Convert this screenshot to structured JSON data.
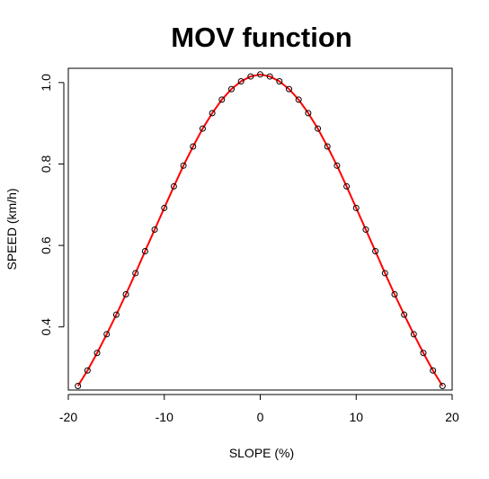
{
  "chart_data": {
    "type": "line",
    "title": "MOV function",
    "xlabel": "SLOPE (%)",
    "ylabel": "SPEED (km/h)",
    "xlim": [
      -20,
      20
    ],
    "ylim": [
      0.245,
      1.035
    ],
    "x_ticks": [
      -20,
      -10,
      0,
      10,
      20
    ],
    "x_tick_labels": [
      "-20",
      "-10",
      "0",
      "10",
      "20"
    ],
    "y_ticks": [
      0.4,
      0.6,
      0.8,
      1.0
    ],
    "y_tick_labels": [
      "0.4",
      "0.6",
      "0.8",
      "1.0"
    ],
    "grid": false,
    "colors": {
      "line": "#ff0000",
      "points": "#000000"
    },
    "series": [
      {
        "style": "points",
        "x": [
          -19,
          -18,
          -17,
          -16,
          -15,
          -14,
          -13,
          -12,
          -11,
          -10,
          -9,
          -8,
          -7,
          -6,
          -5,
          -4,
          -3,
          -2,
          -1,
          0,
          1,
          2,
          3,
          4,
          5,
          6,
          7,
          8,
          9,
          10,
          11,
          12,
          13,
          14,
          15,
          16,
          17,
          18,
          19
        ],
        "values": [
          0.255,
          0.293,
          0.336,
          0.382,
          0.43,
          0.48,
          0.532,
          0.586,
          0.639,
          0.692,
          0.745,
          0.796,
          0.843,
          0.887,
          0.925,
          0.958,
          0.984,
          1.003,
          1.015,
          1.02,
          1.015,
          1.003,
          0.984,
          0.958,
          0.925,
          0.887,
          0.843,
          0.796,
          0.745,
          0.692,
          0.639,
          0.586,
          0.532,
          0.48,
          0.43,
          0.382,
          0.336,
          0.293,
          0.255
        ]
      },
      {
        "style": "line",
        "x": [
          -19,
          -18,
          -17,
          -16,
          -15,
          -14,
          -13,
          -12,
          -11,
          -10,
          -9,
          -8,
          -7,
          -6,
          -5,
          -4,
          -3,
          -2,
          -1,
          0,
          1,
          2,
          3,
          4,
          5,
          6,
          7,
          8,
          9,
          10,
          11,
          12,
          13,
          14,
          15,
          16,
          17,
          18,
          19
        ],
        "values": [
          0.255,
          0.293,
          0.336,
          0.382,
          0.43,
          0.48,
          0.532,
          0.586,
          0.639,
          0.692,
          0.745,
          0.796,
          0.843,
          0.887,
          0.925,
          0.958,
          0.984,
          1.003,
          1.015,
          1.02,
          1.015,
          1.003,
          0.984,
          0.958,
          0.925,
          0.887,
          0.843,
          0.796,
          0.745,
          0.692,
          0.639,
          0.586,
          0.532,
          0.48,
          0.43,
          0.382,
          0.336,
          0.293,
          0.255
        ]
      }
    ]
  }
}
